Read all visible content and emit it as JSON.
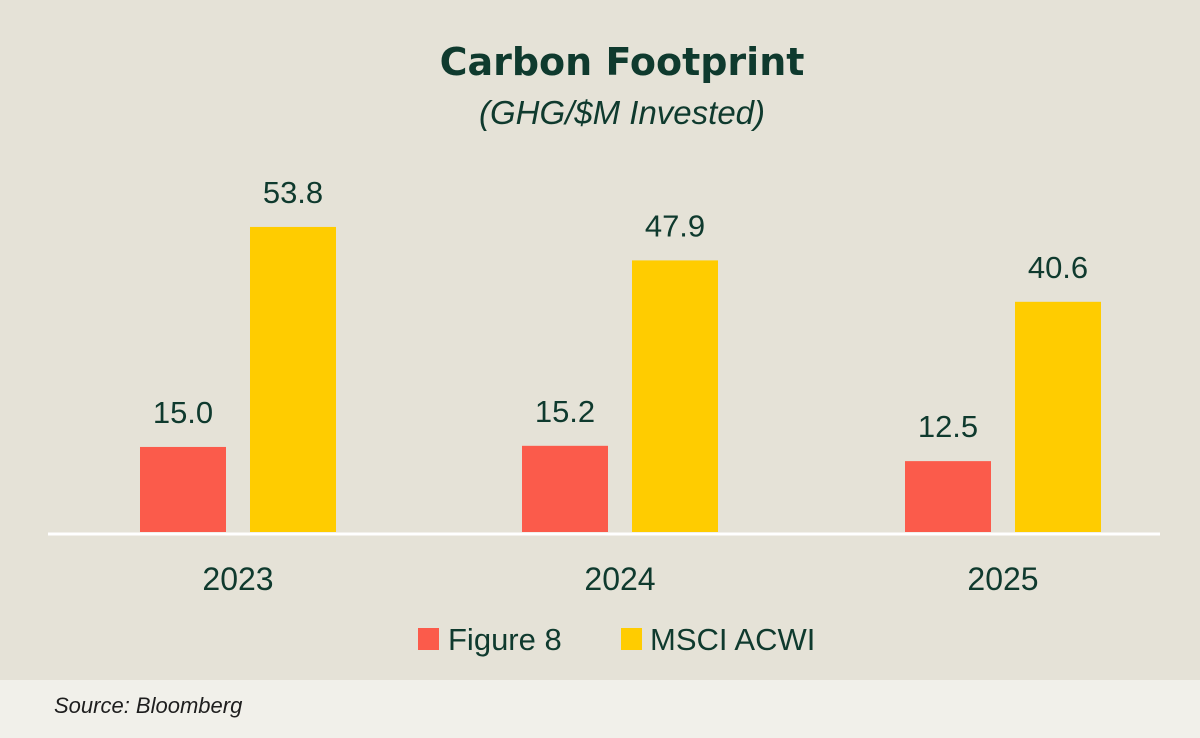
{
  "chart_data": {
    "type": "bar",
    "title": "Carbon Footprint",
    "subtitle": "(GHG/$M Invested)",
    "categories": [
      "2023",
      "2024",
      "2025"
    ],
    "series": [
      {
        "name": "Figure 8",
        "color": "#fb5b4b",
        "values": [
          15.0,
          15.2,
          12.5
        ],
        "labels": [
          "15.0",
          "15.2",
          "12.5"
        ]
      },
      {
        "name": "MSCI ACWI",
        "color": "#ffcc00",
        "values": [
          53.8,
          47.9,
          40.6
        ],
        "labels": [
          "53.8",
          "47.9",
          "40.6"
        ]
      }
    ],
    "ylim": [
      0,
      60
    ],
    "grid": false,
    "legend": "bottom-center",
    "xlabel": "",
    "ylabel": ""
  },
  "source": "Source: Bloomberg"
}
